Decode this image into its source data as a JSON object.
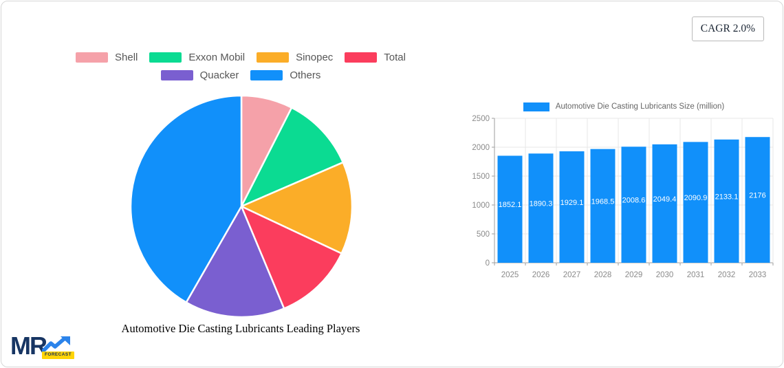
{
  "page": {
    "cagr_label": "CAGR 2.0%"
  },
  "logo": {
    "text": "MR",
    "badge": "FORECAST"
  },
  "chart_data": [
    {
      "type": "pie",
      "title": "Automotive Die Casting Lubricants Leading Players",
      "labels": [
        "Shell",
        "Exxon Mobil",
        "Sinopec",
        "Total",
        "Quacker",
        "Others"
      ],
      "values_percent": [
        7.5,
        11.0,
        13.5,
        11.7,
        14.6,
        41.7
      ],
      "colors": [
        "#f5a1a9",
        "#0bdb92",
        "#fbad28",
        "#fb3d5d",
        "#7a5fd0",
        "#1190fa"
      ],
      "legend_position": "top",
      "start_angle_deg_from_top": 0,
      "slice_border_color": "#ffffff"
    },
    {
      "type": "bar",
      "legend_label": "Automotive Die Casting Lubricants Size (million)",
      "categories": [
        "2025",
        "2026",
        "2027",
        "2028",
        "2029",
        "2030",
        "2031",
        "2032",
        "2033"
      ],
      "values": [
        1852.1,
        1890.3,
        1929.1,
        1968.5,
        2008.6,
        2049.4,
        2090.9,
        2133.1,
        2176
      ],
      "bar_color": "#1190fa",
      "value_label_color": "#ffffff",
      "ylim": [
        0,
        2500
      ],
      "yticks": [
        0,
        500,
        1000,
        1500,
        2000,
        2500
      ],
      "grid": true,
      "legend_position": "top",
      "axis_color": "#9e9e9e",
      "grid_color": "#e7e7e7",
      "tick_label_color": "#8a8a8a"
    }
  ]
}
